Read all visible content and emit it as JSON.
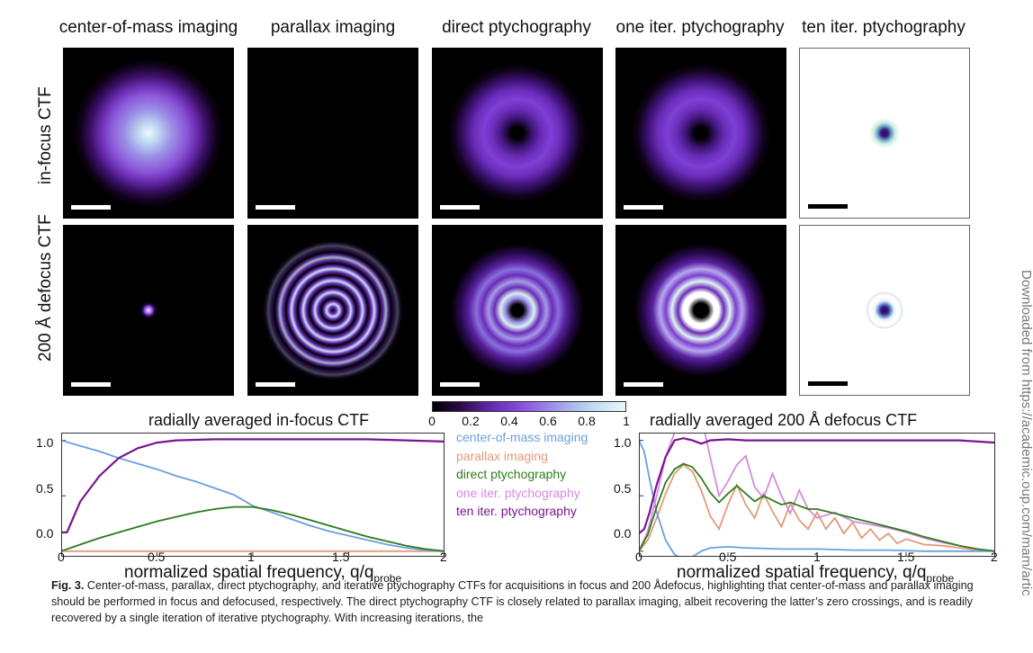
{
  "columns": [
    "center-of-mass imaging",
    "parallax imaging",
    "direct ptychography",
    "one iter. ptychography",
    "ten iter. ptychography"
  ],
  "rows": [
    "in-focus CTF",
    "200 Å defocus CTF"
  ],
  "colorbar": {
    "ticks": [
      "0",
      "0.2",
      "0.4",
      "0.6",
      "0.8",
      "1"
    ]
  },
  "colors": {
    "com": "#6a9fe0",
    "parallax": "#e29a78",
    "direct": "#2e7d1e",
    "one_iter": "#d78ae0",
    "ten_iter": "#7a1590"
  },
  "chart_data": [
    {
      "type": "line",
      "title": "radially averaged in-focus CTF",
      "xlabel_main": "normalized spatial frequency, q/q",
      "xlabel_sub": "probe",
      "xlim": [
        0,
        2
      ],
      "ylim": [
        -0.05,
        1.07
      ],
      "xticks": [
        "0",
        "0.5",
        "1",
        "1.5",
        "2"
      ],
      "yticks": [
        "0.0",
        "0.5",
        "1.0"
      ],
      "series": [
        {
          "name": "center-of-mass imaging",
          "x": [
            0,
            0.1,
            0.2,
            0.3,
            0.4,
            0.5,
            0.6,
            0.7,
            0.8,
            0.9,
            1.0,
            1.1,
            1.2,
            1.3,
            1.4,
            1.5,
            1.6,
            1.7,
            1.8,
            1.9,
            2.0
          ],
          "y": [
            1.0,
            0.95,
            0.9,
            0.84,
            0.79,
            0.74,
            0.68,
            0.63,
            0.57,
            0.51,
            0.41,
            0.35,
            0.29,
            0.23,
            0.18,
            0.14,
            0.1,
            0.06,
            0.03,
            0.01,
            0.0
          ]
        },
        {
          "name": "parallax imaging",
          "x": [
            0,
            2.0
          ],
          "y": [
            0.0,
            0.0
          ]
        },
        {
          "name": "direct ptychography",
          "x": [
            0,
            0.1,
            0.2,
            0.3,
            0.4,
            0.5,
            0.6,
            0.7,
            0.8,
            0.9,
            1.0,
            1.1,
            1.2,
            1.3,
            1.4,
            1.5,
            1.6,
            1.7,
            1.8,
            1.9,
            2.0
          ],
          "y": [
            0.0,
            0.06,
            0.12,
            0.17,
            0.22,
            0.27,
            0.31,
            0.35,
            0.38,
            0.4,
            0.4,
            0.37,
            0.33,
            0.28,
            0.23,
            0.18,
            0.13,
            0.09,
            0.05,
            0.02,
            0.0
          ]
        },
        {
          "name": "one iter. ptychography",
          "x": [
            0,
            0.1,
            0.2,
            0.3,
            0.4,
            0.5,
            0.6,
            0.7,
            0.8,
            0.9,
            1.0,
            1.1,
            1.2,
            1.3,
            1.4,
            1.5,
            1.6,
            1.7,
            1.8,
            1.9,
            2.0
          ],
          "y": [
            0.0,
            0.06,
            0.12,
            0.17,
            0.22,
            0.27,
            0.31,
            0.35,
            0.38,
            0.4,
            0.4,
            0.37,
            0.33,
            0.28,
            0.23,
            0.18,
            0.13,
            0.09,
            0.05,
            0.02,
            0.0
          ]
        },
        {
          "name": "ten iter. ptychography",
          "x": [
            0,
            0.03,
            0.05,
            0.1,
            0.2,
            0.3,
            0.4,
            0.5,
            0.6,
            0.8,
            1.0,
            1.2,
            1.4,
            1.6,
            1.8,
            2.0
          ],
          "y": [
            0.17,
            0.17,
            0.25,
            0.45,
            0.68,
            0.84,
            0.93,
            0.98,
            1.0,
            1.01,
            1.01,
            1.01,
            1.01,
            1.01,
            1.0,
            0.99
          ]
        }
      ]
    },
    {
      "type": "line",
      "title": "radially averaged 200 Å defocus CTF",
      "xlabel_main": "normalized spatial frequency, q/q",
      "xlabel_sub": "probe",
      "xlim": [
        0,
        2
      ],
      "ylim": [
        -0.05,
        1.07
      ],
      "xticks": [
        "0",
        "0.5",
        "1",
        "1.5",
        "2"
      ],
      "yticks": [
        "0.0",
        "0.5",
        "1.0"
      ],
      "series": [
        {
          "name": "center-of-mass imaging",
          "x": [
            0,
            0.03,
            0.06,
            0.1,
            0.15,
            0.2,
            0.25,
            0.3,
            0.35,
            0.4,
            0.5,
            0.6,
            0.8,
            1.0,
            1.2,
            1.4,
            1.6,
            1.8,
            2.0
          ],
          "y": [
            1.0,
            0.9,
            0.65,
            0.35,
            0.1,
            -0.03,
            -0.07,
            -0.05,
            0.0,
            0.03,
            0.04,
            0.03,
            0.02,
            0.02,
            0.01,
            0.01,
            0.0,
            0.0,
            0.0
          ]
        },
        {
          "name": "parallax imaging",
          "x": [
            0,
            0.05,
            0.1,
            0.15,
            0.2,
            0.25,
            0.3,
            0.35,
            0.4,
            0.45,
            0.5,
            0.55,
            0.6,
            0.65,
            0.7,
            0.75,
            0.8,
            0.85,
            0.9,
            0.95,
            1.0,
            1.05,
            1.1,
            1.15,
            1.2,
            1.25,
            1.3,
            1.35,
            1.4,
            1.45,
            1.5,
            1.6,
            1.7,
            1.8,
            1.9,
            2.0
          ],
          "y": [
            0.0,
            0.1,
            0.3,
            0.52,
            0.7,
            0.78,
            0.72,
            0.55,
            0.32,
            0.2,
            0.42,
            0.6,
            0.42,
            0.3,
            0.52,
            0.36,
            0.22,
            0.43,
            0.28,
            0.2,
            0.35,
            0.2,
            0.3,
            0.16,
            0.26,
            0.12,
            0.2,
            0.1,
            0.16,
            0.07,
            0.11,
            0.06,
            0.05,
            0.03,
            0.01,
            0.0
          ]
        },
        {
          "name": "direct ptychography",
          "x": [
            0,
            0.05,
            0.1,
            0.15,
            0.2,
            0.25,
            0.3,
            0.35,
            0.4,
            0.45,
            0.5,
            0.55,
            0.6,
            0.65,
            0.7,
            0.75,
            0.8,
            0.85,
            0.9,
            0.95,
            1.0,
            1.1,
            1.2,
            1.3,
            1.4,
            1.5,
            1.6,
            1.7,
            1.8,
            1.9,
            2.0
          ],
          "y": [
            0.0,
            0.15,
            0.4,
            0.62,
            0.74,
            0.79,
            0.76,
            0.66,
            0.53,
            0.44,
            0.52,
            0.59,
            0.52,
            0.45,
            0.5,
            0.46,
            0.42,
            0.44,
            0.41,
            0.38,
            0.38,
            0.34,
            0.3,
            0.26,
            0.22,
            0.18,
            0.13,
            0.09,
            0.05,
            0.02,
            0.0
          ]
        },
        {
          "name": "one iter. ptychography",
          "x": [
            0,
            0.05,
            0.1,
            0.15,
            0.2,
            0.25,
            0.3,
            0.33,
            0.37,
            0.4,
            0.45,
            0.5,
            0.55,
            0.6,
            0.65,
            0.7,
            0.75,
            0.8,
            0.85,
            0.9,
            0.95,
            1.0,
            1.1,
            1.2,
            1.3,
            1.4,
            1.5,
            1.6,
            1.7,
            1.8,
            1.9,
            2.0
          ],
          "y": [
            0.0,
            0.18,
            0.5,
            0.85,
            1.07,
            1.07,
            1.07,
            1.07,
            1.07,
            0.85,
            0.5,
            0.63,
            0.78,
            0.86,
            0.58,
            0.48,
            0.7,
            0.5,
            0.34,
            0.55,
            0.38,
            0.3,
            0.35,
            0.27,
            0.24,
            0.21,
            0.17,
            0.12,
            0.08,
            0.05,
            0.02,
            0.0
          ]
        },
        {
          "name": "ten iter. ptychography",
          "x": [
            0,
            0.03,
            0.06,
            0.1,
            0.15,
            0.2,
            0.25,
            0.3,
            0.35,
            0.4,
            0.5,
            0.6,
            0.8,
            1.0,
            1.2,
            1.4,
            1.6,
            1.8,
            2.0
          ],
          "y": [
            0.16,
            0.2,
            0.35,
            0.6,
            0.85,
            1.0,
            1.02,
            1.0,
            0.97,
            1.0,
            1.01,
            1.0,
            1.0,
            1.0,
            1.0,
            1.0,
            1.0,
            1.0,
            0.98
          ]
        }
      ]
    }
  ],
  "side_note": "Downloaded from https://academic.oup.com/mam/artic",
  "caption": {
    "label": "Fig. 3.",
    "text": "Center-of-mass, parallax, direct ptychography, and iterative ptychography CTFs for acquisitions in focus and 200 Ådefocus, highlighting that center-of-mass and parallax imaging should be performed in focus and defocused, respectively. The direct ptychography CTF is closely related to parallax imaging, albeit recovering the latter’s zero crossings, and is readily recovered by a single iteration of iterative ptychography. With increasing iterations, the"
  }
}
